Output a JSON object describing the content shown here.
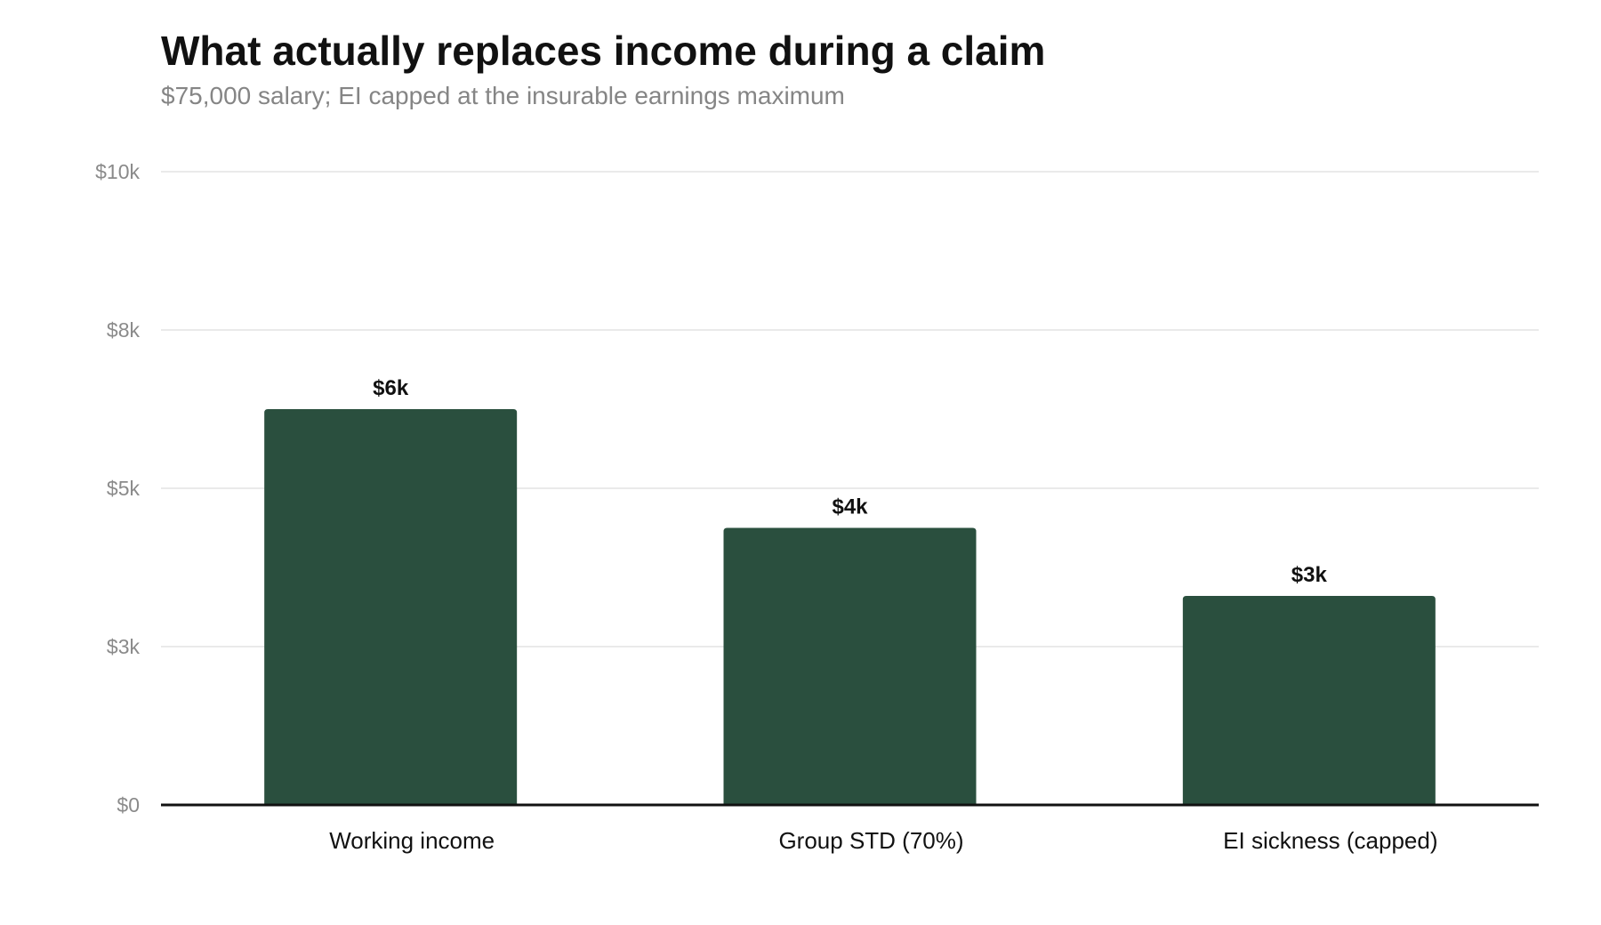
{
  "title": "What actually replaces income during a claim",
  "subtitle": "$75,000 salary; EI capped at the insurable earnings maximum",
  "colors": {
    "bar": "#2a4f3e",
    "grid": "#e3e3e3",
    "axis": "#111111"
  },
  "chart_data": {
    "type": "bar",
    "categories": [
      "Working income",
      "Group STD (70%)",
      "EI sickness (capped)"
    ],
    "values": [
      6250,
      4375,
      3300
    ],
    "data_labels": [
      "$6k",
      "$4k",
      "$3k"
    ],
    "ylim": [
      0,
      10000
    ],
    "yticks": [
      0,
      2500,
      5000,
      7500,
      10000
    ],
    "ytick_labels": [
      "$0",
      "$3k",
      "$5k",
      "$8k",
      "$10k"
    ],
    "grid": true,
    "legend": "none"
  }
}
